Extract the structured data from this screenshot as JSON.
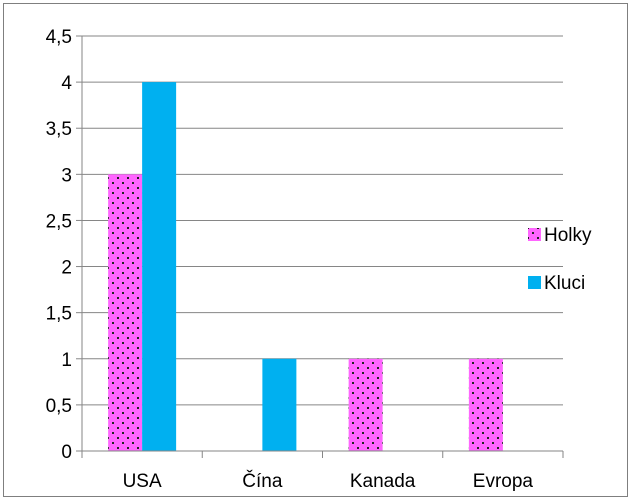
{
  "chart_data": {
    "type": "bar",
    "categories": [
      "USA",
      "Čína",
      "Kanada",
      "Evropa"
    ],
    "series": [
      {
        "name": "Holky",
        "values": [
          3,
          0,
          1,
          1
        ],
        "color": "#ff66ff",
        "pattern": "dots"
      },
      {
        "name": "Kluci",
        "values": [
          4,
          1,
          0,
          0
        ],
        "color": "#00b0f0",
        "pattern": "solid"
      }
    ],
    "yticks": [
      "0",
      "0,5",
      "1",
      "1,5",
      "2",
      "2,5",
      "3",
      "3,5",
      "4",
      "4,5"
    ],
    "ylim": [
      0,
      4.5
    ],
    "ystep": 0.5,
    "grid": true,
    "legend_position": "right"
  }
}
